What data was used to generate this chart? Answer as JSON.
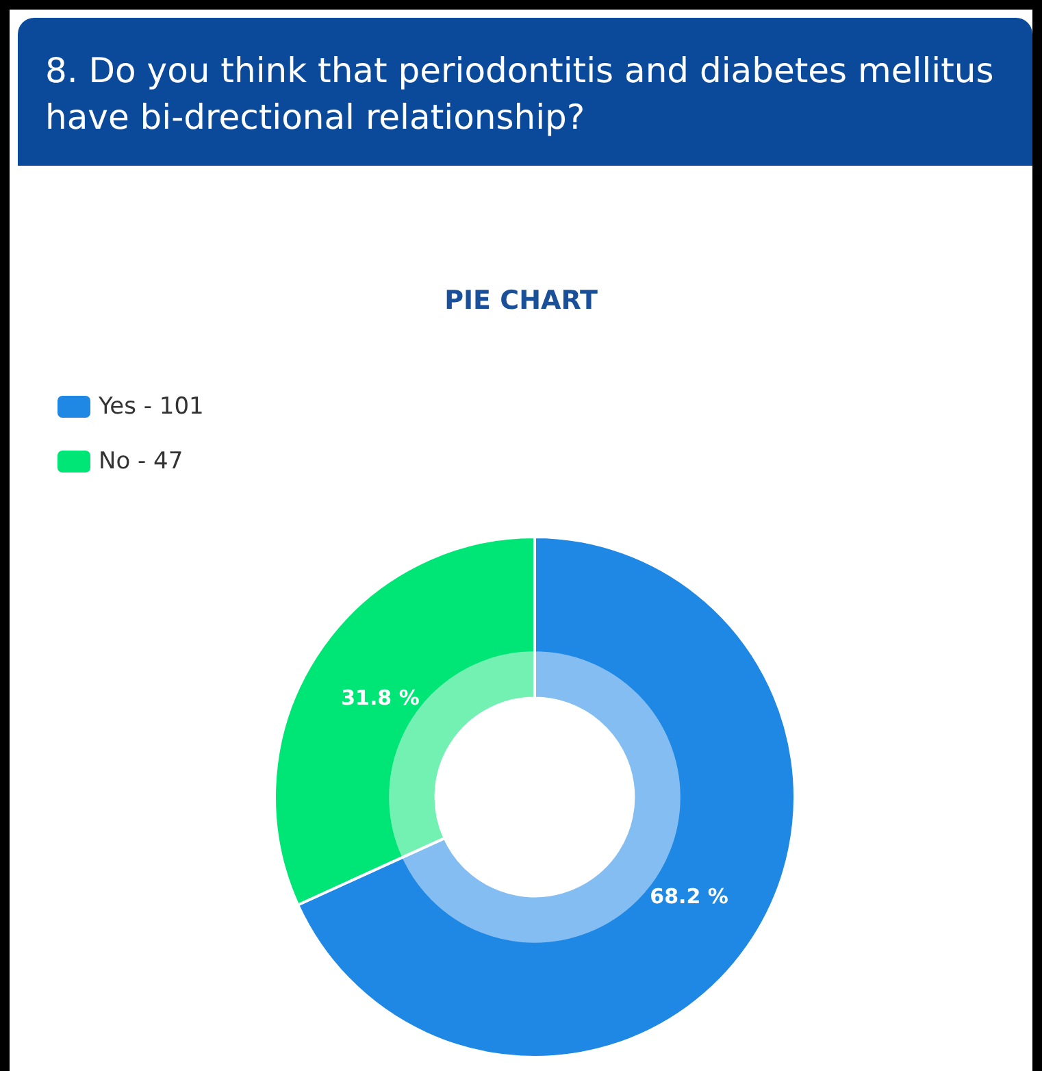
{
  "chart_data": {
    "type": "donut",
    "title": "8. Do you think that periodontitis and diabetes mellitus have bi-drectional relationship?",
    "subtitle": "PIE CHART",
    "categories": [
      "Yes - 101",
      "No - 47"
    ],
    "values": [
      68.2,
      31.8
    ],
    "colors": [
      "#1f88e5",
      "#00e676"
    ],
    "value_labels": [
      "68.2 %",
      "31.8 %"
    ],
    "legend": "top left"
  }
}
